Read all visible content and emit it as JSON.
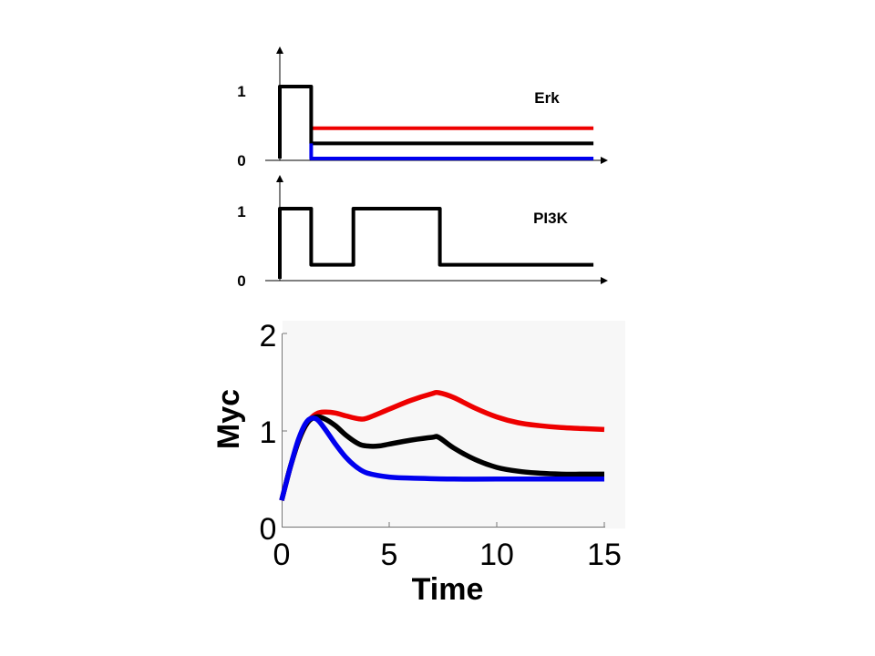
{
  "chart_data": [
    {
      "type": "line",
      "title": "",
      "label": "Erk",
      "xlabel": "",
      "ylabel": "",
      "xlim": [
        0,
        15
      ],
      "ylim": [
        0,
        1
      ],
      "y_ticks": [
        "0",
        "1"
      ],
      "series": [
        {
          "name": "red",
          "color": "#ee0000",
          "x": [
            1.45,
            14.5
          ],
          "y": [
            0.42,
            0.42
          ]
        },
        {
          "name": "black",
          "color": "#000000",
          "x": [
            0,
            0,
            1.45,
            1.45,
            14.5
          ],
          "y": [
            0,
            1,
            1,
            0.21,
            0.21
          ]
        },
        {
          "name": "blue",
          "color": "#0000ee",
          "x": [
            1.45,
            1.45,
            14.5
          ],
          "y": [
            0.21,
            0,
            0
          ]
        }
      ]
    },
    {
      "type": "line",
      "title": "",
      "label": "PI3K",
      "xlabel": "",
      "ylabel": "",
      "xlim": [
        0,
        15
      ],
      "ylim": [
        0,
        1
      ],
      "y_ticks": [
        "0",
        "1"
      ],
      "series": [
        {
          "name": "black",
          "color": "#000000",
          "x": [
            0,
            0,
            1.45,
            1.45,
            3.4,
            3.4,
            7.4,
            7.4,
            14.5
          ],
          "y": [
            0,
            1,
            1,
            0.2,
            0.2,
            1,
            1,
            0.2,
            0.2
          ]
        }
      ]
    },
    {
      "type": "line",
      "title": "",
      "xlabel": "Time",
      "ylabel": "Myc",
      "xlim": [
        0,
        15
      ],
      "ylim": [
        0,
        2
      ],
      "x_ticks": [
        "0",
        "5",
        "10",
        "15"
      ],
      "y_ticks": [
        "0",
        "1",
        "2"
      ],
      "background": "#f7f7f7",
      "series": [
        {
          "name": "red",
          "color": "#ee0000",
          "x": [
            0,
            0.4,
            0.8,
            1.2,
            1.6,
            2.0,
            2.5,
            3.0,
            3.6,
            4.0,
            5.0,
            6.0,
            7.0,
            7.3,
            8.0,
            9.0,
            10.0,
            11.0,
            12.0,
            13.0,
            14.0,
            15.0
          ],
          "y": [
            0.28,
            0.62,
            0.9,
            1.08,
            1.17,
            1.19,
            1.18,
            1.15,
            1.12,
            1.13,
            1.22,
            1.31,
            1.38,
            1.39,
            1.34,
            1.23,
            1.14,
            1.08,
            1.05,
            1.03,
            1.02,
            1.01
          ]
        },
        {
          "name": "black",
          "color": "#000000",
          "x": [
            0,
            0.4,
            0.8,
            1.2,
            1.6,
            2.0,
            2.5,
            3.0,
            3.6,
            4.0,
            4.5,
            5.0,
            6.0,
            7.0,
            7.3,
            8.0,
            9.0,
            10.0,
            11.0,
            12.0,
            13.0,
            14.0,
            15.0
          ],
          "y": [
            0.28,
            0.62,
            0.9,
            1.08,
            1.14,
            1.12,
            1.05,
            0.95,
            0.86,
            0.84,
            0.84,
            0.86,
            0.9,
            0.93,
            0.93,
            0.82,
            0.7,
            0.62,
            0.58,
            0.56,
            0.55,
            0.55,
            0.55
          ]
        },
        {
          "name": "blue",
          "color": "#0000ee",
          "x": [
            0,
            0.4,
            0.8,
            1.2,
            1.6,
            2.0,
            2.5,
            3.0,
            3.5,
            4.0,
            5.0,
            6.0,
            8.0,
            10.0,
            12.0,
            15.0
          ],
          "y": [
            0.28,
            0.62,
            0.92,
            1.1,
            1.12,
            1.02,
            0.86,
            0.72,
            0.62,
            0.56,
            0.52,
            0.51,
            0.5,
            0.5,
            0.5,
            0.5
          ]
        }
      ]
    }
  ]
}
